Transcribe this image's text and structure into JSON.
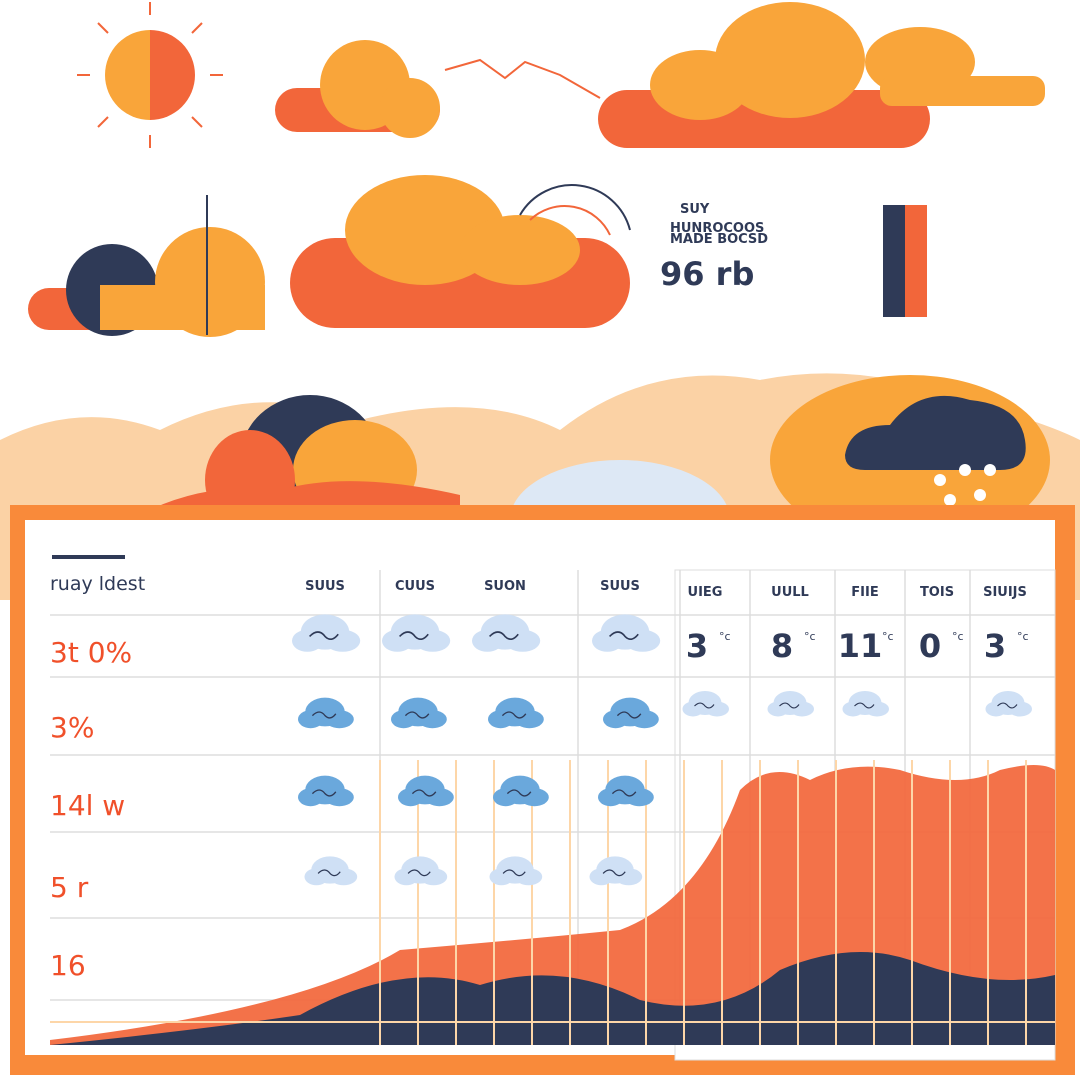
{
  "header": {
    "label": "SUY",
    "lines": [
      "HUNROCOOS",
      "MADE BOCSD"
    ],
    "reading": "96 rb"
  },
  "table": {
    "title": "ruay ldest",
    "columns": [
      "SUUS",
      "CUUS",
      "SUON",
      "SUUS",
      "UIEG",
      "UULL",
      "FIIE",
      "TOIS",
      "SIUIJS"
    ],
    "rows": [
      "3t 0%",
      "3%",
      "14l w",
      "5 r",
      "16"
    ],
    "readings": [
      {
        "value": "3",
        "unit": "°c"
      },
      {
        "value": "8",
        "unit": "°c"
      },
      {
        "value": "11",
        "unit": "°c"
      },
      {
        "value": "0",
        "unit": "°c"
      },
      {
        "value": "3",
        "unit": "°c"
      }
    ]
  }
}
